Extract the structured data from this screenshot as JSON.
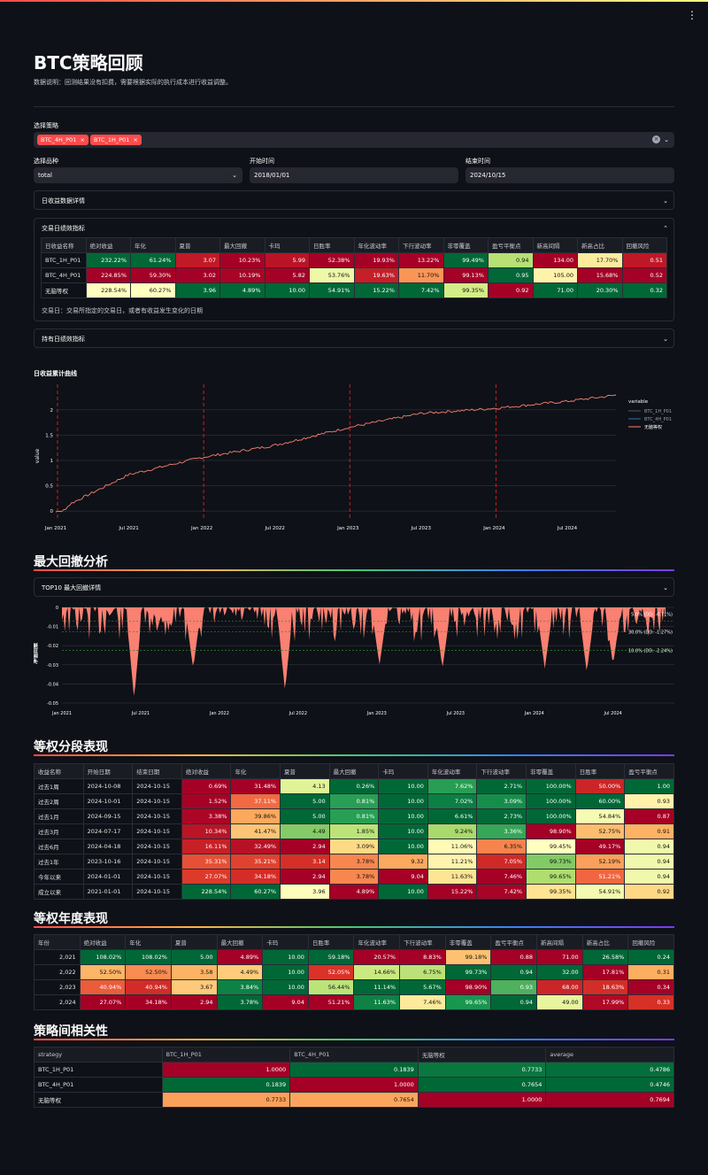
{
  "page": {
    "title": "BTC策略回顾",
    "note": "数据说明：回测结果没有扣费，需要根据实际的执行成本进行收益调整。"
  },
  "filters": {
    "strategy_label": "选择策略",
    "tags": [
      "BTC_4H_P01",
      "BTC_1H_P01"
    ],
    "symbol_label": "选择品种",
    "symbol_value": "total",
    "start_label": "开始时间",
    "start_value": "2018/01/01",
    "end_label": "结束时间",
    "end_value": "2024/10/15"
  },
  "expanders": {
    "daily_detail": "日收益数据详情",
    "trade_metrics": "交易日绩效指标",
    "hold_metrics": "持有日绩效指标",
    "top10": "TOP10 最大回撤详情"
  },
  "trade_table": {
    "headers": [
      "日收益名称",
      "绝对收益",
      "年化",
      "夏普",
      "最大回撤",
      "卡玛",
      "日胜率",
      "年化波动率",
      "下行波动率",
      "非零覆盖",
      "盈亏平衡点",
      "新高间隔",
      "新高占比",
      "回撤风险"
    ],
    "rows": [
      [
        "BTC_1H_P01",
        "232.22%",
        "61.24%",
        "3.07",
        "10.23%",
        "5.99",
        "52.38%",
        "19.93%",
        "13.22%",
        "99.49%",
        "0.94",
        "134.00",
        "17.70%",
        "0.51"
      ],
      [
        "BTC_4H_P01",
        "224.85%",
        "59.30%",
        "3.02",
        "10.19%",
        "5.82",
        "53.76%",
        "19.63%",
        "11.70%",
        "99.13%",
        "0.95",
        "105.00",
        "15.68%",
        "0.52"
      ],
      [
        "无脑等权",
        "228.54%",
        "60.27%",
        "3.96",
        "4.89%",
        "10.00",
        "54.91%",
        "15.22%",
        "7.42%",
        "99.35%",
        "0.92",
        "71.00",
        "20.30%",
        "0.32"
      ]
    ],
    "footnote": "交易日：交易所指定的交易日，或者有收益发生变化的日期"
  },
  "cum_chart": {
    "title": "日收益累计曲线",
    "ylabel": "value",
    "xticks": [
      "Jan 2021",
      "Jul 2021",
      "Jan 2022",
      "Jul 2022",
      "Jan 2023",
      "Jul 2023",
      "Jan 2024",
      "Jul 2024"
    ],
    "yticks": [
      "0",
      "0.5",
      "1",
      "1.5",
      "2"
    ],
    "legend_title": "variable",
    "series_names": [
      "BTC_1H_P01",
      "BTC_4H_P01",
      "无脑等权"
    ],
    "colors": [
      "#555555",
      "#3a6ea5",
      "#fa8072"
    ]
  },
  "chart_data": [
    {
      "type": "line",
      "title": "日收益累计曲线",
      "ylabel": "value",
      "x": [
        "2021-01",
        "2021-07",
        "2022-01",
        "2022-07",
        "2023-01",
        "2023-07",
        "2024-01",
        "2024-07",
        "2024-10"
      ],
      "series": [
        {
          "name": "无脑等权",
          "values": [
            0.0,
            0.72,
            1.06,
            1.3,
            1.65,
            1.93,
            2.03,
            2.17,
            2.29
          ]
        }
      ],
      "ylim": [
        -0.05,
        2.4
      ]
    },
    {
      "type": "area",
      "title": "最大回撤分析",
      "ylabel": "净值回撤",
      "x": [
        "2021-01",
        "2021-07",
        "2022-01",
        "2022-07",
        "2023-01",
        "2023-07",
        "2024-01",
        "2024-07"
      ],
      "annotations": [
        "5.0% (DD: -0.71%)",
        "30.0% (DD: -1.27%)",
        "10.0% (DD: -2.24%)"
      ],
      "ylim": [
        -0.05,
        0
      ]
    }
  ],
  "dd_chart": {
    "section": "最大回撤分析",
    "ylabel": "净值回撤",
    "xticks": [
      "Jan 2021",
      "Jul 2021",
      "Jan 2022",
      "Jul 2022",
      "Jan 2023",
      "Jul 2023",
      "Jan 2024",
      "Jul 2024"
    ],
    "yticks": [
      "0",
      "-0.01",
      "-0.02",
      "-0.03",
      "-0.04",
      "-0.05"
    ],
    "annotations": [
      "5.0% (DD: -0.71%)",
      "30.0% (DD: -1.27%)",
      "10.0% (DD: -2.24%)"
    ]
  },
  "segment_table": {
    "section": "等权分段表现",
    "headers": [
      "收益名称",
      "开始日期",
      "结束日期",
      "绝对收益",
      "年化",
      "夏普",
      "最大回撤",
      "卡玛",
      "年化波动率",
      "下行波动率",
      "非零覆盖",
      "日胜率",
      "盈亏平衡点"
    ],
    "rows": [
      [
        "过去1周",
        "2024-10-08",
        "2024-10-15",
        "0.69%",
        "31.48%",
        "4.13",
        "0.26%",
        "10.00",
        "7.62%",
        "2.71%",
        "100.00%",
        "50.00%",
        "1.00"
      ],
      [
        "过去2周",
        "2024-10-01",
        "2024-10-15",
        "1.52%",
        "37.11%",
        "5.00",
        "0.81%",
        "10.00",
        "7.02%",
        "3.09%",
        "100.00%",
        "60.00%",
        "0.93"
      ],
      [
        "过去1月",
        "2024-09-15",
        "2024-10-15",
        "3.38%",
        "39.86%",
        "5.00",
        "0.81%",
        "10.00",
        "6.61%",
        "2.73%",
        "100.00%",
        "54.84%",
        "0.87"
      ],
      [
        "过去3月",
        "2024-07-17",
        "2024-10-15",
        "10.34%",
        "41.47%",
        "4.49",
        "1.85%",
        "10.00",
        "9.24%",
        "3.36%",
        "98.90%",
        "52.75%",
        "0.91"
      ],
      [
        "过去6月",
        "2024-04-18",
        "2024-10-15",
        "16.11%",
        "32.49%",
        "2.94",
        "3.09%",
        "10.00",
        "11.06%",
        "6.35%",
        "99.45%",
        "49.17%",
        "0.94"
      ],
      [
        "过去1年",
        "2023-10-16",
        "2024-10-15",
        "35.31%",
        "35.21%",
        "3.14",
        "3.78%",
        "9.32",
        "11.21%",
        "7.05%",
        "99.73%",
        "52.19%",
        "0.94"
      ],
      [
        "今年以来",
        "2024-01-01",
        "2024-10-15",
        "27.07%",
        "34.18%",
        "2.94",
        "3.78%",
        "9.04",
        "11.63%",
        "7.46%",
        "99.65%",
        "51.21%",
        "0.94"
      ],
      [
        "成立以来",
        "2021-01-01",
        "2024-10-15",
        "228.54%",
        "60.27%",
        "3.96",
        "4.89%",
        "10.00",
        "15.22%",
        "7.42%",
        "99.35%",
        "54.91%",
        "0.92"
      ]
    ]
  },
  "year_table": {
    "section": "等权年度表现",
    "headers": [
      "年份",
      "绝对收益",
      "年化",
      "夏普",
      "最大回撤",
      "卡玛",
      "日胜率",
      "年化波动率",
      "下行波动率",
      "非零覆盖",
      "盈亏平衡点",
      "新高间隔",
      "新高占比",
      "回撤风险"
    ],
    "rows": [
      [
        "2,021",
        "108.02%",
        "108.02%",
        "5.00",
        "4.89%",
        "10.00",
        "59.18%",
        "20.57%",
        "8.83%",
        "99.18%",
        "0.88",
        "71.00",
        "26.58%",
        "0.24"
      ],
      [
        "2,022",
        "52.50%",
        "52.50%",
        "3.58",
        "4.49%",
        "10.00",
        "52.05%",
        "14.66%",
        "6.75%",
        "99.73%",
        "0.94",
        "32.00",
        "17.81%",
        "0.31"
      ],
      [
        "2,023",
        "40.94%",
        "40.94%",
        "3.67",
        "3.84%",
        "10.00",
        "56.44%",
        "11.14%",
        "5.67%",
        "98.90%",
        "0.93",
        "68.00",
        "18.63%",
        "0.34"
      ],
      [
        "2,024",
        "27.07%",
        "34.18%",
        "2.94",
        "3.78%",
        "9.04",
        "51.21%",
        "11.63%",
        "7.46%",
        "99.65%",
        "0.94",
        "49.00",
        "17.99%",
        "0.33"
      ]
    ]
  },
  "corr_table": {
    "section": "策略间相关性",
    "headers": [
      "strategy",
      "BTC_1H_P01",
      "BTC_4H_P01",
      "无脑等权",
      "average"
    ],
    "rows": [
      [
        "BTC_1H_P01",
        "1.0000",
        "0.1839",
        "0.7733",
        "0.4786"
      ],
      [
        "BTC_4H_P01",
        "0.1839",
        "1.0000",
        "0.7654",
        "0.4746"
      ],
      [
        "无脑等权",
        "0.7733",
        "0.7654",
        "1.0000",
        "0.7694"
      ]
    ]
  }
}
